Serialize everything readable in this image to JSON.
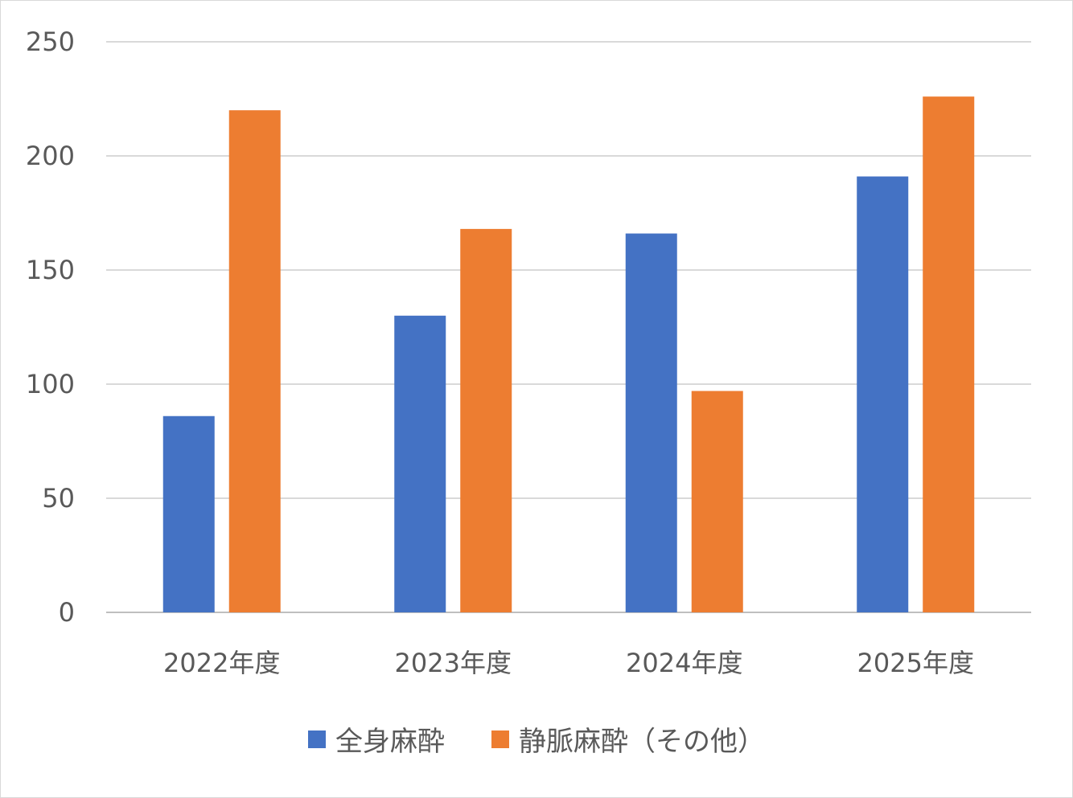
{
  "chart_data": {
    "type": "bar",
    "categories": [
      "2022年度",
      "2023年度",
      "2024年度",
      "2025年度"
    ],
    "series": [
      {
        "name": "全身麻酔",
        "values": [
          86,
          130,
          166,
          191
        ],
        "color": "#4472c4"
      },
      {
        "name": "静脈麻酔（その他）",
        "values": [
          220,
          168,
          97,
          226
        ],
        "color": "#ed7d31"
      }
    ],
    "y_ticks": [
      "0",
      "50",
      "100",
      "150",
      "200",
      "250"
    ],
    "ylim": [
      0,
      250
    ],
    "grid": true,
    "legend": "bottom",
    "title": "",
    "xlabel": "",
    "ylabel": ""
  }
}
